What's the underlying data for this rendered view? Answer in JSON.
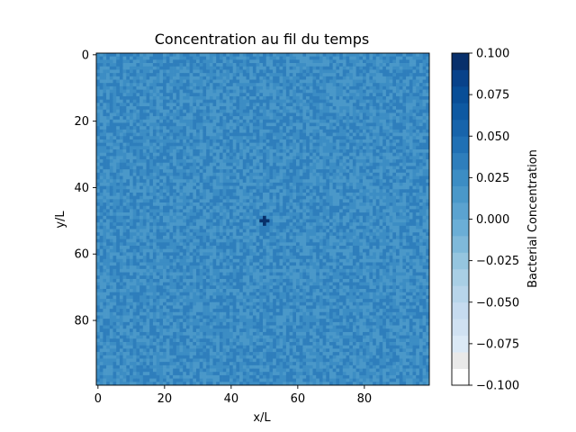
{
  "chart_data": {
    "type": "heatmap",
    "title": "Concentration au fil du temps",
    "xlabel": "x/L",
    "ylabel": "y/L",
    "grid_size": 100,
    "xlim": [
      0,
      99
    ],
    "ylim": [
      99,
      0
    ],
    "x_ticks": [
      0,
      20,
      40,
      60,
      80
    ],
    "y_ticks": [
      0,
      20,
      40,
      60,
      80
    ],
    "x_tick_labels": [
      "0",
      "20",
      "40",
      "60",
      "80"
    ],
    "y_tick_labels": [
      "0",
      "20",
      "40",
      "60",
      "80"
    ],
    "grid": false,
    "colormap": "Blues",
    "colorbar": {
      "label": "Bacterial Concentration",
      "min": -0.1,
      "max": 0.1,
      "levels": 20,
      "ticks": [
        0.1,
        0.075,
        0.05,
        0.025,
        0.0,
        -0.025,
        -0.05,
        -0.075,
        -0.1
      ],
      "tick_labels": [
        "0.100",
        "0.075",
        "0.050",
        "0.025",
        "0.000",
        "−0.025",
        "−0.050",
        "−0.075",
        "−0.100"
      ],
      "colors": [
        "#ffffff",
        "#e9e9e9",
        "#dbe9f6",
        "#d0e1f2",
        "#c6dbef",
        "#b8d5ea",
        "#a9cfe5",
        "#95c5df",
        "#7fb9da",
        "#6baed6",
        "#5ba3d0",
        "#4a98c9",
        "#3c8dc4",
        "#2e7ebc",
        "#2070b4",
        "#1764ab",
        "#0e59a2",
        "#084e97",
        "#08428a",
        "#08306b"
      ]
    },
    "field": {
      "description_values": "Near-zero noise in roughly [0.010, 0.040] across the 100x100 grid",
      "noise_min": 0.01,
      "noise_max": 0.04,
      "peak": {
        "x": 50,
        "y": 50,
        "value": 0.1,
        "shape": "plus"
      }
    }
  }
}
